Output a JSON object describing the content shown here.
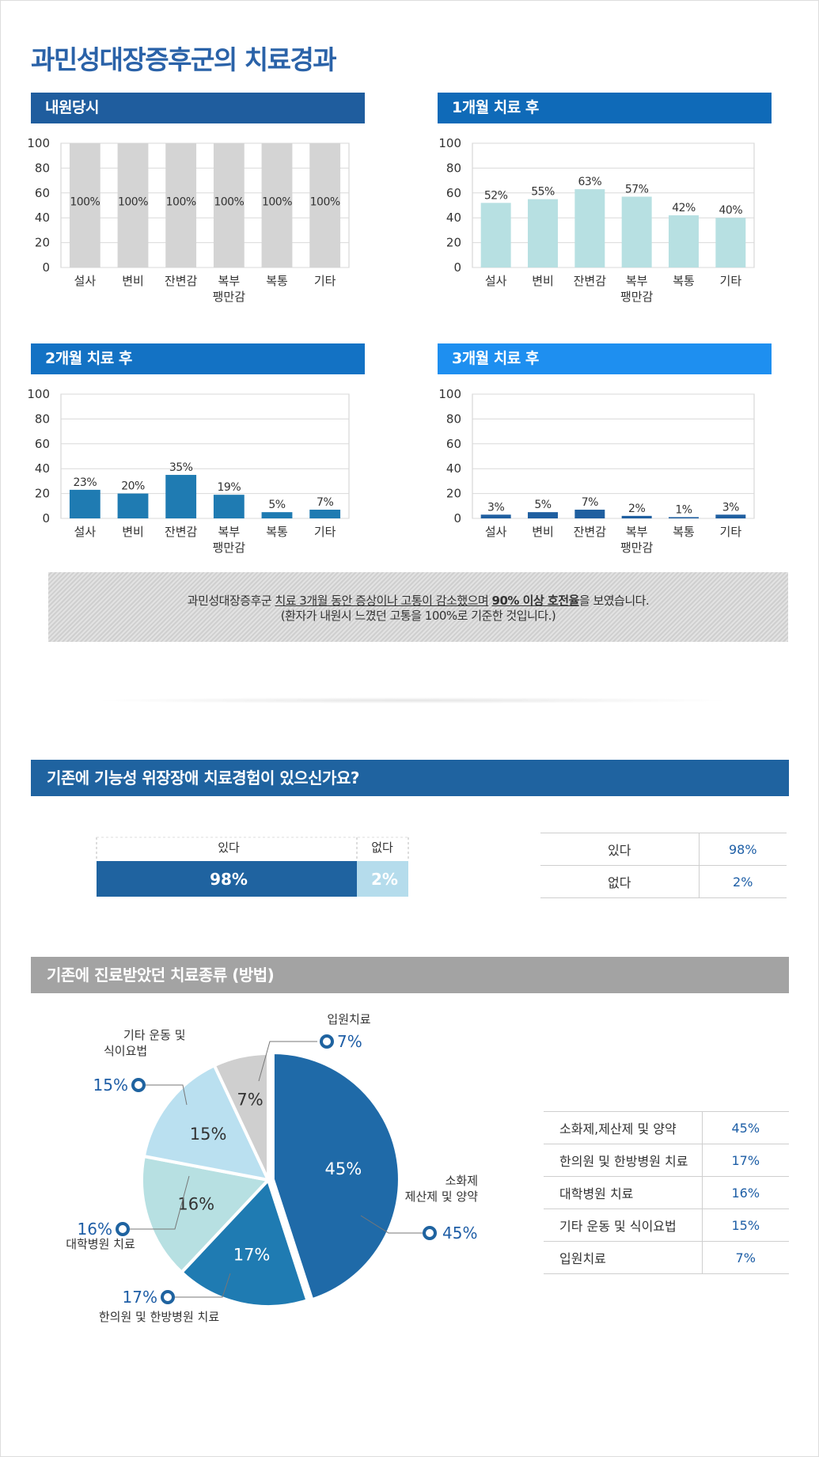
{
  "title": "과민성대장증후군의 치료경과",
  "colors": {
    "title_blue": "#2a62a8",
    "header_1": "#1f5d9e",
    "header_2": "#0f6ab8",
    "header_3": "#1372c4",
    "header_4": "#1e8ff0",
    "bar_gray": "#d4d4d4",
    "bar_teal": "#b7e0e2",
    "bar_blue": "#1f7bb2",
    "bar_dark": "#1f5fa0",
    "section_blue": "#1f63a0",
    "section_gray": "#a3a3a3"
  },
  "progress_charts": [
    {
      "header": "내원당시",
      "color_key": "bar_gray",
      "header_key": "header_1"
    },
    {
      "header": "1개월 치료 후",
      "color_key": "bar_teal",
      "header_key": "header_2"
    },
    {
      "header": "2개월 치료 후",
      "color_key": "bar_blue",
      "header_key": "header_3"
    },
    {
      "header": "3개월 치료 후",
      "color_key": "bar_dark",
      "header_key": "header_4"
    }
  ],
  "chart_data": [
    {
      "type": "bar",
      "title": "내원당시",
      "categories": [
        "설사",
        "변비",
        "잔변감",
        "복부\n팽만감",
        "복통",
        "기타"
      ],
      "values": [
        100,
        100,
        100,
        100,
        100,
        100
      ],
      "ylim": [
        0,
        100
      ],
      "yticks": [
        0,
        20,
        40,
        60,
        80,
        100
      ],
      "value_suffix": "%",
      "grid": true
    },
    {
      "type": "bar",
      "title": "1개월 치료 후",
      "categories": [
        "설사",
        "변비",
        "잔변감",
        "복부\n팽만감",
        "복통",
        "기타"
      ],
      "values": [
        52,
        55,
        63,
        57,
        42,
        40
      ],
      "ylim": [
        0,
        100
      ],
      "yticks": [
        0,
        20,
        40,
        60,
        80,
        100
      ],
      "value_suffix": "%",
      "grid": true
    },
    {
      "type": "bar",
      "title": "2개월 치료 후",
      "categories": [
        "설사",
        "변비",
        "잔변감",
        "복부\n팽만감",
        "복통",
        "기타"
      ],
      "values": [
        23,
        20,
        35,
        19,
        5,
        7
      ],
      "ylim": [
        0,
        100
      ],
      "yticks": [
        0,
        20,
        40,
        60,
        80,
        100
      ],
      "value_suffix": "%",
      "grid": true
    },
    {
      "type": "bar",
      "title": "3개월 치료 후",
      "categories": [
        "설사",
        "변비",
        "잔변감",
        "복부\n팽만감",
        "복통",
        "기타"
      ],
      "values": [
        3,
        5,
        7,
        2,
        1,
        3
      ],
      "ylim": [
        0,
        100
      ],
      "yticks": [
        0,
        20,
        40,
        60,
        80,
        100
      ],
      "value_suffix": "%",
      "grid": true
    },
    {
      "type": "bar",
      "title": "기존에 기능성 위장장애 치료경험이 있으신가요?",
      "orientation": "horizontal-stacked",
      "categories": [
        "있다",
        "없다"
      ],
      "values": [
        98,
        2
      ],
      "value_suffix": "%"
    },
    {
      "type": "pie",
      "title": "기존에 진료받았던 치료종류 (방법)",
      "categories": [
        "소화제,제산제 및 양약",
        "한의원 및 한방병원 치료",
        "대학병원 치료",
        "기타 운동 및 식이요법",
        "입원치료"
      ],
      "values": [
        45,
        17,
        16,
        15,
        7
      ],
      "value_suffix": "%"
    }
  ],
  "note": {
    "line1_pre": "과민성대장증후군 ",
    "line1_u1": "치료 3개월 동안 증상이나 고통이 감소했으며",
    "line1_space": " ",
    "line1_bold": "90% 이상 호전율",
    "line1_post": "을 보였습니다.",
    "line2": "(환자가 내원시 느꼈던 고통을 100%로 기준한 것입니다.)"
  },
  "experience": {
    "header": "기존에 기능성 위장장애 치료경험이 있으신가요?",
    "yes_label": "있다",
    "no_label": "없다",
    "yes_value": "98%",
    "no_value": "2%",
    "table": [
      {
        "label": "있다",
        "value": "98%"
      },
      {
        "label": "없다",
        "value": "2%"
      }
    ]
  },
  "treatment": {
    "header": "기존에 진료받았던 치료종류 (방법)",
    "pie_labels": [
      {
        "lines": [
          "소화제",
          "제산제 및 양약"
        ],
        "pct": "45%"
      },
      {
        "lines": [
          "한의원 및 한방병원 치료"
        ],
        "pct": "17%"
      },
      {
        "lines": [
          "대학병원 치료"
        ],
        "pct": "16%"
      },
      {
        "lines": [
          "기타 운동 및",
          "식이요법"
        ],
        "pct": "15%"
      },
      {
        "lines": [
          "입원치료"
        ],
        "pct": "7%"
      }
    ],
    "pie_colors": [
      "#1f6aa8",
      "#1f7bb2",
      "#b7e0e2",
      "#bae0f0",
      "#cfcfcf"
    ],
    "pie_inner_text_colors": [
      "#ffffff",
      "#ffffff",
      "#333333",
      "#333333",
      "#333333"
    ],
    "table": [
      {
        "label": "소화제,제산제 및 양약",
        "value": "45%"
      },
      {
        "label": "한의원 및 한방병원 치료",
        "value": "17%"
      },
      {
        "label": "대학병원 치료",
        "value": "16%"
      },
      {
        "label": "기타 운동 및 식이요법",
        "value": "15%"
      },
      {
        "label": "입원치료",
        "value": "7%"
      }
    ]
  }
}
